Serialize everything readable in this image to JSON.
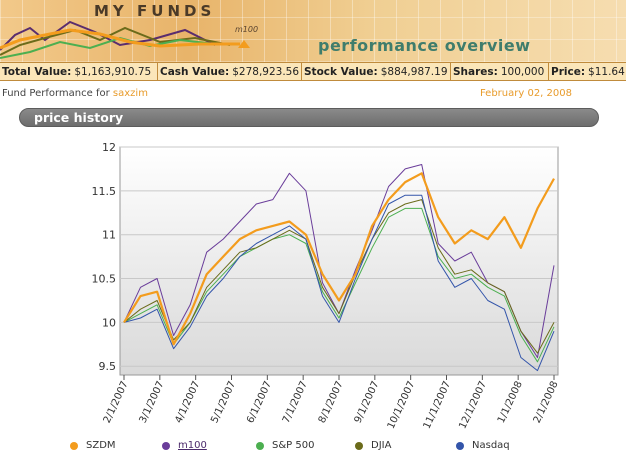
{
  "banner": {
    "brand_title": "MY FUNDS",
    "brand_sub": "m100",
    "tagline": "performance overview"
  },
  "stats": [
    {
      "label": "Total Value:",
      "value": "$1,163,910.75"
    },
    {
      "label": "Cash Value:",
      "value": "$278,923.56"
    },
    {
      "label": "Stock Value:",
      "value": "$884,987.19"
    },
    {
      "label": "Shares:",
      "value": "100,000"
    },
    {
      "label": "Price:",
      "value": "$11.64"
    }
  ],
  "performance": {
    "prefix": "Fund Performance for",
    "user": "saxzim",
    "date": "February 02, 2008"
  },
  "section": {
    "title": "price history"
  },
  "colors": {
    "SZDM": "#f39c1d",
    "m100": "#6a3d9a",
    "SP500": "#4caf50",
    "DJIA": "#6b6b1a",
    "Nasdaq": "#3355aa"
  },
  "chart_data": {
    "type": "line",
    "ylim": [
      9.4,
      12
    ],
    "yticks": [
      9.5,
      10,
      10.5,
      11,
      11.5,
      12
    ],
    "xticks": [
      "2/1/2007",
      "3/1/2007",
      "4/1/2007",
      "5/1/2007",
      "6/1/2007",
      "7/1/2007",
      "8/1/2007",
      "9/1/2007",
      "10/1/2007",
      "11/1/2007",
      "12/1/2007",
      "1/1/2008",
      "2/1/2008"
    ],
    "grid": true,
    "legend": "bottom",
    "series": [
      {
        "name": "SZDM",
        "values": [
          10.0,
          10.3,
          10.35,
          9.75,
          10.1,
          10.55,
          10.75,
          10.95,
          11.05,
          11.1,
          11.15,
          11.0,
          10.55,
          10.25,
          10.55,
          11.1,
          11.4,
          11.6,
          11.7,
          11.2,
          10.9,
          11.05,
          10.95,
          11.2,
          10.85,
          11.3,
          11.64
        ]
      },
      {
        "name": "m100",
        "values": [
          10.0,
          10.4,
          10.5,
          9.85,
          10.2,
          10.8,
          10.95,
          11.15,
          11.35,
          11.4,
          11.7,
          11.5,
          10.45,
          10.1,
          10.6,
          11.05,
          11.55,
          11.75,
          11.8,
          10.9,
          10.7,
          10.8,
          10.45,
          10.35,
          9.9,
          9.6,
          10.65
        ]
      },
      {
        "name": "S&P 500",
        "values": [
          10.0,
          10.1,
          10.2,
          9.75,
          10.0,
          10.35,
          10.55,
          10.75,
          10.85,
          10.95,
          11.0,
          10.9,
          10.35,
          10.05,
          10.45,
          10.85,
          11.2,
          11.3,
          11.3,
          10.75,
          10.5,
          10.55,
          10.4,
          10.3,
          9.85,
          9.55,
          9.95
        ]
      },
      {
        "name": "DJIA",
        "values": [
          10.0,
          10.15,
          10.25,
          9.8,
          10.0,
          10.4,
          10.6,
          10.8,
          10.85,
          10.95,
          11.05,
          10.95,
          10.4,
          10.1,
          10.55,
          10.95,
          11.25,
          11.35,
          11.4,
          10.85,
          10.55,
          10.6,
          10.45,
          10.35,
          9.9,
          9.65,
          10.0
        ]
      },
      {
        "name": "Nasdaq",
        "values": [
          10.0,
          10.05,
          10.15,
          9.7,
          9.95,
          10.3,
          10.5,
          10.75,
          10.9,
          11.0,
          11.1,
          10.95,
          10.3,
          10.0,
          10.5,
          10.95,
          11.35,
          11.45,
          11.45,
          10.7,
          10.4,
          10.5,
          10.25,
          10.15,
          9.6,
          9.45,
          9.9
        ]
      }
    ]
  }
}
